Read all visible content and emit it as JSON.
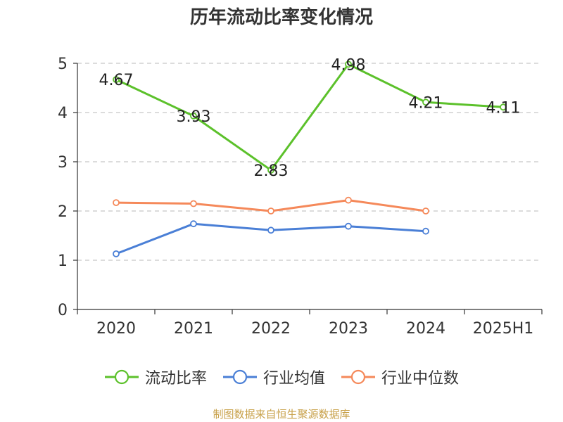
{
  "title": "历年流动比率变化情况",
  "source_note": "制图数据来自恒生聚源数据库",
  "chart_data": {
    "type": "line",
    "title": "历年流动比率变化情况",
    "categories": [
      "2020",
      "2021",
      "2022",
      "2023",
      "2024",
      "2025H1"
    ],
    "ylim": [
      0,
      5
    ],
    "yticks": [
      0,
      1,
      2,
      3,
      4,
      5
    ],
    "grid": true,
    "legend_position": "bottom",
    "series": [
      {
        "name": "流动比率",
        "color": "#5cc12b",
        "values": [
          4.67,
          3.93,
          2.83,
          4.98,
          4.21,
          4.11
        ],
        "labels": [
          "4.67",
          "3.93",
          "2.83",
          "4.98",
          "4.21",
          "4.11"
        ]
      },
      {
        "name": "行业均值",
        "color": "#4a7fd6",
        "values": [
          1.13,
          1.74,
          1.61,
          1.69,
          1.59,
          null
        ]
      },
      {
        "name": "行业中位数",
        "color": "#f5895a",
        "values": [
          2.17,
          2.15,
          2.0,
          2.22,
          2.0,
          null
        ]
      }
    ]
  }
}
